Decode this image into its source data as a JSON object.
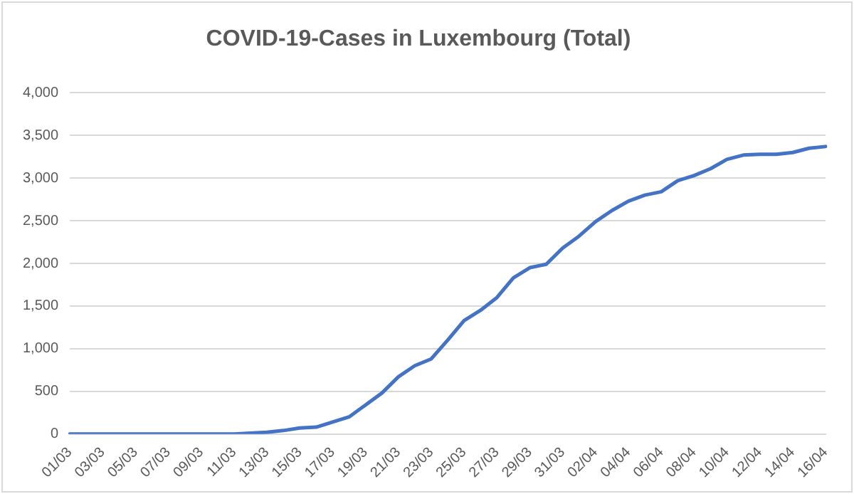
{
  "chart_data": {
    "type": "line",
    "title": "COVID-19-Cases in Luxembourg (Total)",
    "categories": [
      "01/03",
      null,
      "03/03",
      null,
      "05/03",
      null,
      "07/03",
      null,
      "09/03",
      null,
      "11/03",
      null,
      "13/03",
      null,
      "15/03",
      null,
      "17/03",
      null,
      "19/03",
      null,
      "21/03",
      null,
      "23/03",
      null,
      "25/03",
      null,
      "27/03",
      null,
      "29/03",
      null,
      "31/03",
      null,
      "02/04",
      null,
      "04/04",
      null,
      "06/04",
      null,
      "08/04",
      null,
      "10/04",
      null,
      "12/04",
      null,
      "14/04",
      null,
      "16/04"
    ],
    "series": [
      {
        "color": "#4472c4",
        "values": [
          0,
          0,
          0,
          0,
          0,
          0,
          0,
          0,
          0,
          0,
          0,
          10,
          20,
          40,
          70,
          80,
          140,
          200,
          340,
          480,
          670,
          800,
          880,
          1100,
          1330,
          1450,
          1600,
          1830,
          1950,
          1990,
          2180,
          2320,
          2490,
          2620,
          2730,
          2800,
          2840,
          2970,
          3030,
          3110,
          3220,
          3270,
          3280,
          3280,
          3300,
          3350,
          3370
        ]
      }
    ],
    "ylim": [
      0,
      4000
    ],
    "yticks": [
      0,
      500,
      {
        "value": 1000,
        "label": "1,000"
      },
      {
        "value": 1500,
        "label": "1,500"
      },
      {
        "value": 2000,
        "label": "2,000"
      },
      {
        "value": 2500,
        "label": "2,500"
      },
      {
        "value": 3000,
        "label": "3,000"
      },
      {
        "value": 3500,
        "label": "3,500"
      },
      {
        "value": 4000,
        "label": "4,000"
      }
    ],
    "grid": "y",
    "legend": false,
    "marker": "none",
    "line_style": "solid"
  }
}
